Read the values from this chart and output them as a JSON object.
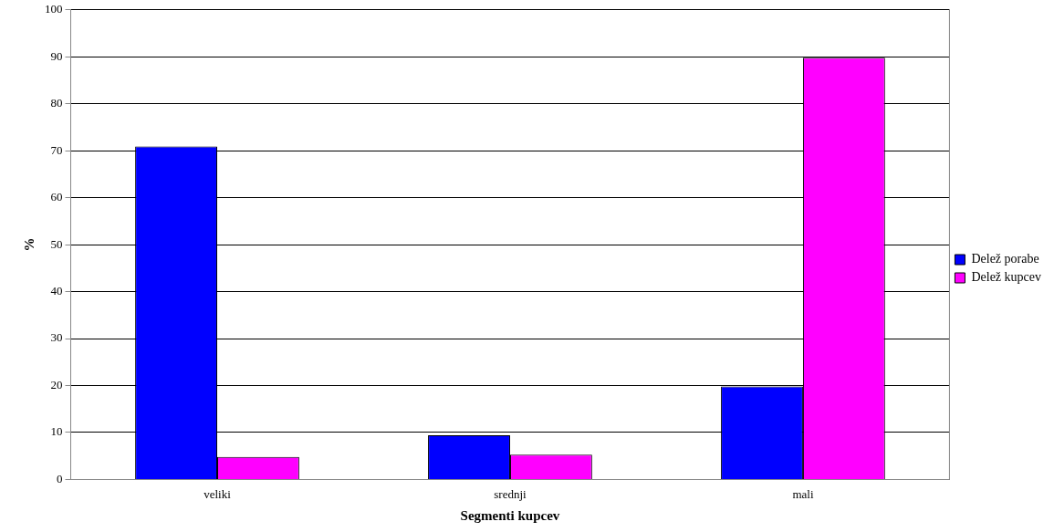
{
  "chart_data": {
    "type": "bar",
    "xlabel": "Segmenti kupcev",
    "ylabel": "%",
    "categories": [
      "veliki",
      "srednji",
      "mali"
    ],
    "series": [
      {
        "name": "Delež porabe",
        "color": "#0000ff",
        "values": [
          70.9,
          9.4,
          19.8
        ]
      },
      {
        "name": "Delež kupcev",
        "color": "#ff00ff",
        "values": [
          4.8,
          5.3,
          89.8
        ]
      }
    ],
    "ylim": [
      0,
      100
    ],
    "yticks": [
      0,
      10,
      20,
      30,
      40,
      50,
      60,
      70,
      80,
      90,
      100
    ],
    "grid": "y",
    "legend": "right"
  }
}
